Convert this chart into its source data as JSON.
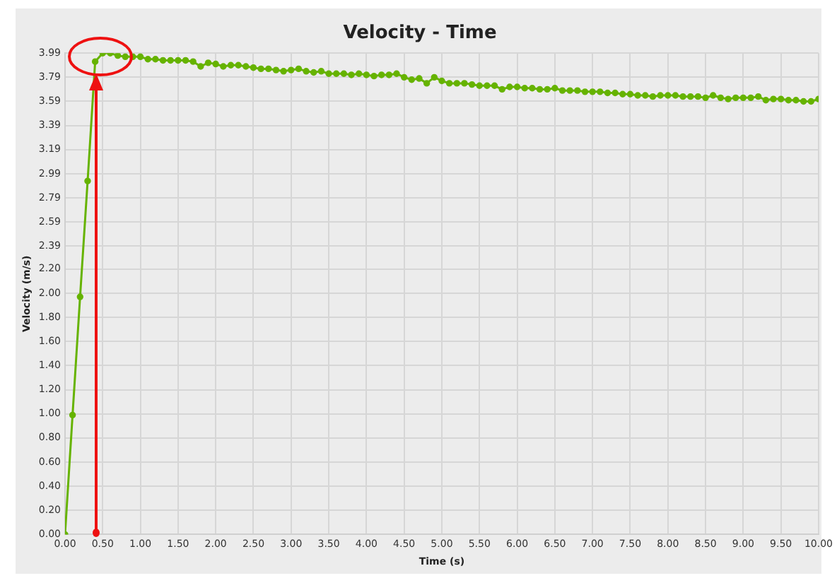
{
  "chart_data": {
    "type": "line",
    "title": "Velocity - Time",
    "xlabel": "Time (s)",
    "ylabel": "Velocity (m/s)",
    "x": [
      0,
      0.1,
      0.2,
      0.3,
      0.4,
      0.5,
      0.6,
      0.7,
      0.8,
      0.9,
      1.0,
      1.1,
      1.2,
      1.3,
      1.4,
      1.5,
      1.6,
      1.7,
      1.8,
      1.9,
      2.0,
      2.1,
      2.2,
      2.3,
      2.4,
      2.5,
      2.6,
      2.7,
      2.8,
      2.9,
      3.0,
      3.1,
      3.2,
      3.3,
      3.4,
      3.5,
      3.6,
      3.7,
      3.8,
      3.9,
      4.0,
      4.1,
      4.2,
      4.3,
      4.4,
      4.5,
      4.6,
      4.7,
      4.8,
      4.9,
      5.0,
      5.1,
      5.2,
      5.3,
      5.4,
      5.5,
      5.6,
      5.7,
      5.8,
      5.9,
      6.0,
      6.1,
      6.2,
      6.3,
      6.4,
      6.5,
      6.6,
      6.7,
      6.8,
      6.9,
      7.0,
      7.1,
      7.2,
      7.3,
      7.4,
      7.5,
      7.6,
      7.7,
      7.8,
      7.9,
      8.0,
      8.1,
      8.2,
      8.3,
      8.4,
      8.5,
      8.6,
      8.7,
      8.8,
      8.9,
      9.0,
      9.1,
      9.2,
      9.3,
      9.4,
      9.5,
      9.6,
      9.7,
      9.8,
      9.9,
      10.0
    ],
    "series": [
      {
        "color": "#66b300",
        "values": [
          0,
          0.99,
          1.97,
          2.93,
          3.92,
          3.99,
          3.99,
          3.97,
          3.96,
          3.96,
          3.96,
          3.94,
          3.94,
          3.93,
          3.93,
          3.93,
          3.93,
          3.92,
          3.88,
          3.91,
          3.9,
          3.88,
          3.89,
          3.89,
          3.88,
          3.87,
          3.86,
          3.86,
          3.85,
          3.84,
          3.85,
          3.86,
          3.84,
          3.83,
          3.84,
          3.82,
          3.82,
          3.82,
          3.81,
          3.82,
          3.81,
          3.8,
          3.81,
          3.81,
          3.82,
          3.79,
          3.77,
          3.78,
          3.74,
          3.79,
          3.76,
          3.74,
          3.74,
          3.74,
          3.73,
          3.72,
          3.72,
          3.72,
          3.69,
          3.71,
          3.71,
          3.7,
          3.7,
          3.69,
          3.69,
          3.7,
          3.68,
          3.68,
          3.68,
          3.67,
          3.67,
          3.67,
          3.66,
          3.66,
          3.65,
          3.65,
          3.64,
          3.64,
          3.63,
          3.64,
          3.64,
          3.64,
          3.63,
          3.63,
          3.63,
          3.62,
          3.64,
          3.62,
          3.61,
          3.62,
          3.62,
          3.62,
          3.63,
          3.6,
          3.61,
          3.61,
          3.6,
          3.6,
          3.59,
          3.59,
          3.61
        ]
      }
    ],
    "xlim": [
      0,
      10
    ],
    "xticks": [
      {
        "value": 0,
        "label": "0.00"
      },
      {
        "value": 0.5,
        "label": "0.50"
      },
      {
        "value": 1,
        "label": "1.00"
      },
      {
        "value": 1.5,
        "label": "1.50"
      },
      {
        "value": 2,
        "label": "2.00"
      },
      {
        "value": 2.5,
        "label": "2.50"
      },
      {
        "value": 3,
        "label": "3.00"
      },
      {
        "value": 3.5,
        "label": "3.50"
      },
      {
        "value": 4,
        "label": "4.00"
      },
      {
        "value": 4.5,
        "label": "4.50"
      },
      {
        "value": 5,
        "label": "5.00"
      },
      {
        "value": 5.5,
        "label": "5.50"
      },
      {
        "value": 6,
        "label": "6.00"
      },
      {
        "value": 6.5,
        "label": "6.50"
      },
      {
        "value": 7,
        "label": "7.00"
      },
      {
        "value": 7.5,
        "label": "7.50"
      },
      {
        "value": 8,
        "label": "8.00"
      },
      {
        "value": 8.5,
        "label": "8.50"
      },
      {
        "value": 9,
        "label": "9.00"
      },
      {
        "value": 9.5,
        "label": "9.50"
      },
      {
        "value": 10,
        "label": "10.00"
      }
    ],
    "ylim": [
      0,
      3.99
    ],
    "yticks": [
      {
        "value": 0,
        "label": "0.00"
      },
      {
        "value": 0.2,
        "label": "0.20"
      },
      {
        "value": 0.4,
        "label": "0.40"
      },
      {
        "value": 0.6,
        "label": "0.60"
      },
      {
        "value": 0.8,
        "label": "0.80"
      },
      {
        "value": 1,
        "label": "1.00"
      },
      {
        "value": 1.2,
        "label": "1.20"
      },
      {
        "value": 1.4,
        "label": "1.40"
      },
      {
        "value": 1.6,
        "label": "1.60"
      },
      {
        "value": 1.8,
        "label": "1.80"
      },
      {
        "value": 2,
        "label": "2.00"
      },
      {
        "value": 2.2,
        "label": "2.20"
      },
      2.39,
      2.59,
      2.79,
      2.99,
      3.19,
      3.39,
      3.59,
      3.79,
      3.99
    ],
    "grid": true,
    "legend": false,
    "marker": "circle",
    "line_style": "solid"
  }
}
